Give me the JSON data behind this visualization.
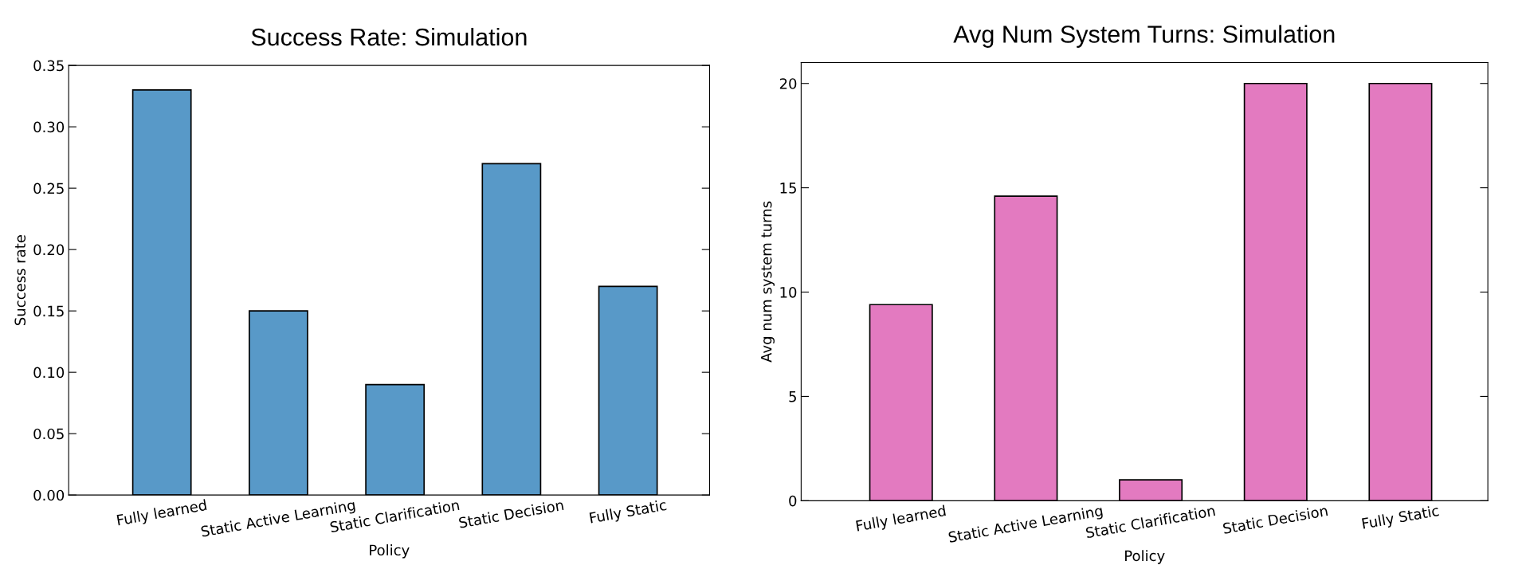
{
  "chart_data": [
    {
      "type": "bar",
      "title": "Success Rate: Simulation",
      "xlabel": "Policy",
      "ylabel": "Success rate",
      "categories": [
        "Fully learned",
        "Static Active Learning",
        "Static Clarification",
        "Static Decision",
        "Fully Static"
      ],
      "values": [
        0.33,
        0.15,
        0.09,
        0.27,
        0.17
      ],
      "color": "#5899c8",
      "ylim": [
        0,
        0.35
      ],
      "yticks": [
        {
          "value": 0,
          "label": "0.00"
        },
        {
          "value": 0.05,
          "label": "0.05"
        },
        {
          "value": 0.1,
          "label": "0.10"
        },
        {
          "value": 0.15,
          "label": "0.15"
        },
        {
          "value": 0.2,
          "label": "0.20"
        },
        {
          "value": 0.25,
          "label": "0.25"
        },
        {
          "value": 0.3,
          "label": "0.30"
        },
        {
          "value": 0.35,
          "label": "0.35"
        }
      ],
      "grid": false,
      "legend": false
    },
    {
      "type": "bar",
      "title": "Avg Num System Turns: Simulation",
      "xlabel": "Policy",
      "ylabel": "Avg num system turns",
      "categories": [
        "Fully learned",
        "Static Active Learning",
        "Static Clarification",
        "Static Decision",
        "Fully Static"
      ],
      "values": [
        9.4,
        14.6,
        1.0,
        20,
        20
      ],
      "color": "#e37ac0",
      "ylim": [
        0,
        21
      ],
      "yticks": [
        0,
        5,
        10,
        15,
        20
      ],
      "grid": false,
      "legend": false
    }
  ]
}
